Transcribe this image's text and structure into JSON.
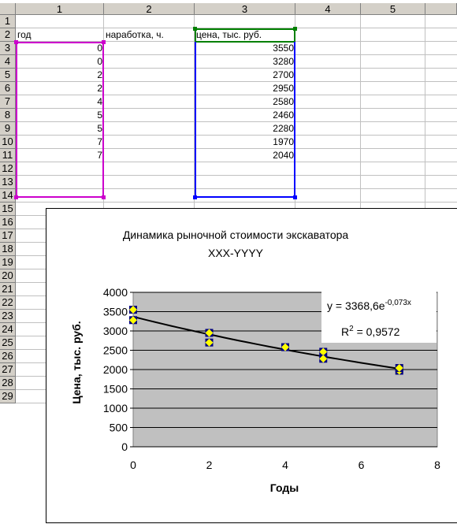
{
  "columns": [
    "1",
    "2",
    "3",
    "4",
    "5"
  ],
  "rows": [
    "1",
    "2",
    "3",
    "4",
    "5",
    "6",
    "7",
    "8",
    "9",
    "10",
    "11",
    "12",
    "13",
    "14",
    "15",
    "16",
    "17",
    "18",
    "19",
    "20",
    "21",
    "22",
    "23",
    "24",
    "25",
    "26",
    "27",
    "28",
    "29"
  ],
  "header_row": {
    "c1": "год",
    "c2": "наработка, ч.",
    "c3": "цена, тыс. руб."
  },
  "data_rows": [
    {
      "c1": "0",
      "c3": "3550"
    },
    {
      "c1": "0",
      "c3": "3280"
    },
    {
      "c1": "2",
      "c3": "2700"
    },
    {
      "c1": "2",
      "c3": "2950"
    },
    {
      "c1": "4",
      "c3": "2580"
    },
    {
      "c1": "5",
      "c3": "2460"
    },
    {
      "c1": "5",
      "c3": "2280"
    },
    {
      "c1": "7",
      "c3": "1970"
    },
    {
      "c1": "7",
      "c3": "2040"
    }
  ],
  "colors": {
    "sel_x": "#cc00cc",
    "sel_y": "#0000ff",
    "sel_hdr": "#008000",
    "plot_bg": "#c0c0c0"
  },
  "chart_data": {
    "type": "scatter",
    "title_line1": "Динамика рыночной стоимости экскаватора",
    "title_line2": "XXX-YYYY",
    "xlabel": "Годы",
    "ylabel": "Цена, тыс. руб.",
    "xlim": [
      0,
      8
    ],
    "ylim": [
      0,
      4000
    ],
    "x_ticks": [
      0,
      2,
      4,
      6,
      8
    ],
    "y_ticks": [
      0,
      500,
      1000,
      1500,
      2000,
      2500,
      3000,
      3500,
      4000
    ],
    "grid": "horizontal",
    "series": [
      {
        "x": [
          0,
          0,
          2,
          2,
          4,
          5,
          5,
          7,
          7
        ],
        "y": [
          3550,
          3280,
          2700,
          2950,
          2580,
          2460,
          2280,
          1970,
          2040
        ]
      }
    ],
    "trendline": {
      "type": "exponential",
      "a": 3368.6,
      "b": -0.073,
      "equation_main": "y = 3368,6e",
      "equation_exp": "-0,073x",
      "r2_label": "R",
      "r2_sup": "2",
      "r2_value": " = 0,9572"
    }
  }
}
